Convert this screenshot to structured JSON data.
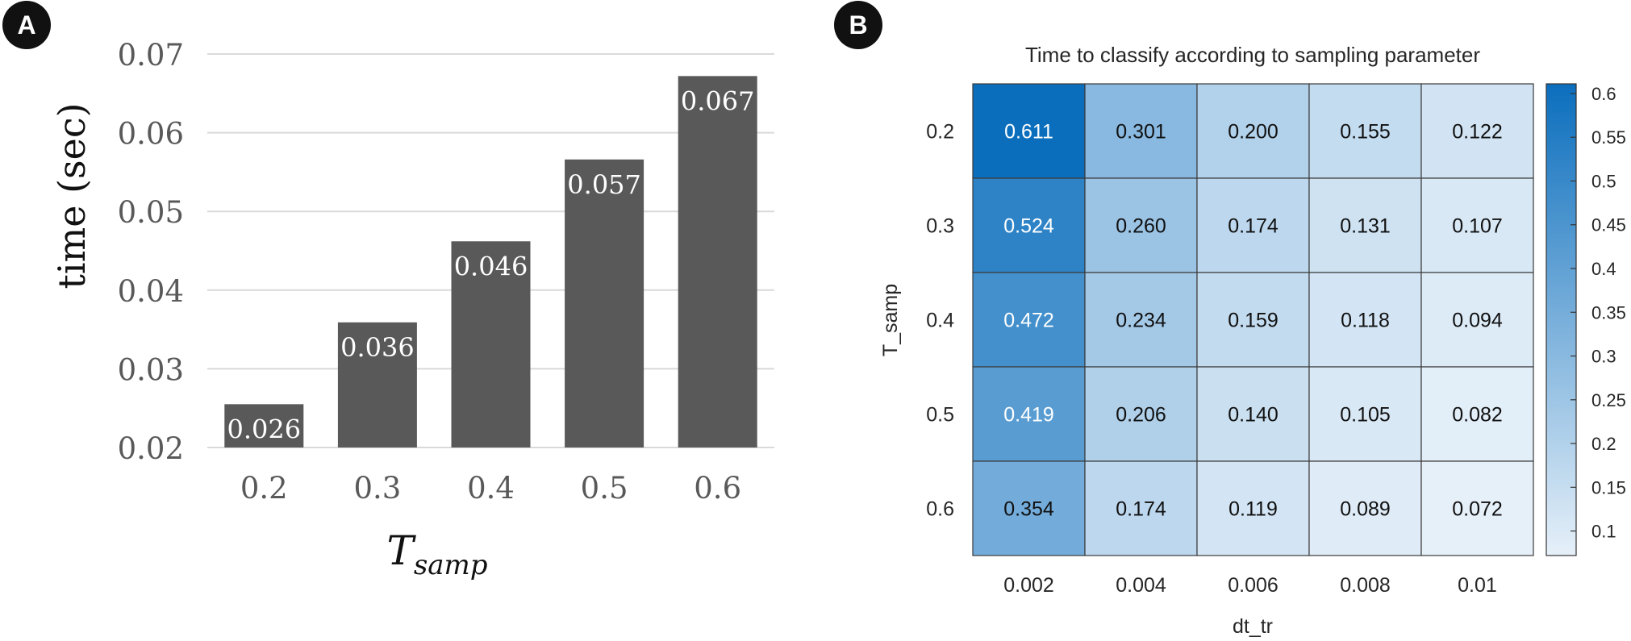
{
  "panels": {
    "a": {
      "label": "A"
    },
    "b": {
      "label": "B"
    }
  },
  "chart_data": [
    {
      "type": "bar",
      "title": "",
      "xlabel_main": "T",
      "xlabel_sub": "samp",
      "ylabel": "time (sec)",
      "categories": [
        "0.2",
        "0.3",
        "0.4",
        "0.5",
        "0.6"
      ],
      "values": [
        0.0255,
        0.0359,
        0.0462,
        0.0566,
        0.0672
      ],
      "data_labels": [
        "0.026",
        "0.036",
        "0.046",
        "0.057",
        "0.067"
      ],
      "ylim": [
        0.02,
        0.07
      ],
      "yticks": [
        0.02,
        0.03,
        0.04,
        0.05,
        0.06,
        0.07
      ],
      "ytick_labels": [
        "0.02",
        "0.03",
        "0.04",
        "0.05",
        "0.06",
        "0.07"
      ],
      "grid": true,
      "bar_color": "#595959"
    },
    {
      "type": "heatmap",
      "title": "Time to classify according to sampling parameter",
      "xlabel": "dt_tr",
      "ylabel": "T_samp",
      "x_categories": [
        "0.002",
        "0.004",
        "0.006",
        "0.008",
        "0.01"
      ],
      "y_categories": [
        "0.2",
        "0.3",
        "0.4",
        "0.5",
        "0.6"
      ],
      "values": [
        [
          0.611,
          0.301,
          0.2,
          0.155,
          0.122
        ],
        [
          0.524,
          0.26,
          0.174,
          0.131,
          0.107
        ],
        [
          0.472,
          0.234,
          0.159,
          0.118,
          0.094
        ],
        [
          0.419,
          0.206,
          0.14,
          0.105,
          0.082
        ],
        [
          0.354,
          0.174,
          0.119,
          0.089,
          0.072
        ]
      ],
      "cell_labels": [
        [
          "0.611",
          "0.301",
          "0.200",
          "0.155",
          "0.122"
        ],
        [
          "0.524",
          "0.260",
          "0.174",
          "0.131",
          "0.107"
        ],
        [
          "0.472",
          "0.234",
          "0.159",
          "0.118",
          "0.094"
        ],
        [
          "0.419",
          "0.206",
          "0.140",
          "0.105",
          "0.082"
        ],
        [
          "0.354",
          "0.174",
          "0.119",
          "0.089",
          "0.072"
        ]
      ],
      "colorbar": {
        "range": [
          0.072,
          0.611
        ],
        "ticks": [
          0.1,
          0.15,
          0.2,
          0.25,
          0.3,
          0.35,
          0.4,
          0.45,
          0.5,
          0.55,
          0.6
        ],
        "tick_labels": [
          "0.1",
          "0.15",
          "0.2",
          "0.25",
          "0.3",
          "0.35",
          "0.4",
          "0.45",
          "0.5",
          "0.55",
          "0.6"
        ],
        "color_low": "#e6f0f9",
        "color_high": "#0b6ebd"
      }
    }
  ]
}
